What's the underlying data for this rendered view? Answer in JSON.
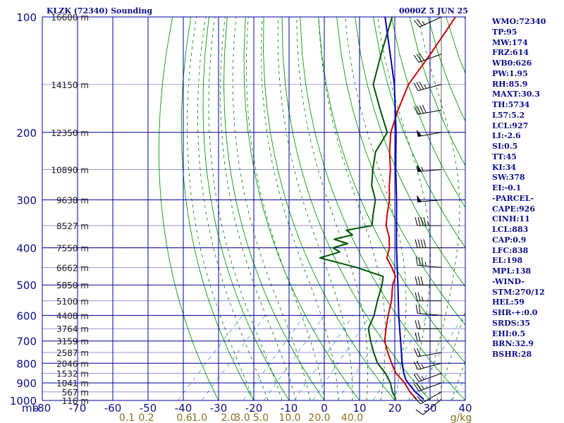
{
  "chart_data": {
    "type": "line",
    "title": "KLZK (72340) Sounding",
    "datetime": "0000Z  5 JUN 25",
    "pressure_unit_label": "mb",
    "xlim": [
      -80,
      40
    ],
    "plim": [
      100,
      1000
    ],
    "pressure_ticks": [
      100,
      200,
      300,
      400,
      500,
      600,
      700,
      800,
      900,
      1000
    ],
    "pressure_tick_labels": [
      "100",
      "200",
      "300",
      "400",
      "500",
      "600",
      "700",
      "800",
      "900",
      "1000"
    ],
    "temperature_ticks": [
      -80,
      -70,
      -60,
      -50,
      -40,
      -30,
      -20,
      -10,
      0,
      10,
      20,
      30,
      40
    ],
    "temperature_tick_labels": [
      "-80",
      "-70",
      "-60",
      "-50",
      "-40",
      "-30",
      "-20",
      "-10",
      "0",
      "10",
      "20",
      "30",
      "40"
    ],
    "mixing_ratio_ticks": [
      {
        "label": "0.1",
        "t": -56.0
      },
      {
        "label": "0.2",
        "t": -50.5
      },
      {
        "label": "0.6",
        "t": -39.7
      },
      {
        "label": "1.0",
        "t": -35.4
      },
      {
        "label": "2.0",
        "t": -27.1
      },
      {
        "label": "3.0",
        "t": -23.3
      },
      {
        "label": "5.0",
        "t": -18.0
      },
      {
        "label": "10.0",
        "t": -9.8
      },
      {
        "label": "20.0",
        "t": -1.4
      },
      {
        "label": "40.0",
        "t": 7.9
      }
    ],
    "mixing_ratio_unit": "g/kg",
    "height_labels": [
      {
        "p": 1000,
        "label": "116 m"
      },
      {
        "p": 950,
        "label": "567 m"
      },
      {
        "p": 900,
        "label": "1041 m"
      },
      {
        "p": 850,
        "label": "1532 m"
      },
      {
        "p": 800,
        "label": "2046 m"
      },
      {
        "p": 750,
        "label": "2587 m"
      },
      {
        "p": 700,
        "label": "3159 m"
      },
      {
        "p": 650,
        "label": "3764 m"
      },
      {
        "p": 600,
        "label": "4408 m"
      },
      {
        "p": 550,
        "label": "5100 m"
      },
      {
        "p": 500,
        "label": "5850 m"
      },
      {
        "p": 450,
        "label": "6662 m"
      },
      {
        "p": 400,
        "label": "7550 m"
      },
      {
        "p": 350,
        "label": "8527 m"
      },
      {
        "p": 300,
        "label": "9638 m"
      },
      {
        "p": 250,
        "label": "10890 m"
      },
      {
        "p": 200,
        "label": "12350 m"
      },
      {
        "p": 150,
        "label": "14150 m"
      },
      {
        "p": 100,
        "label": "16600 m"
      }
    ],
    "series": [
      {
        "name": "Temperature",
        "color": "#cc0000",
        "points": [
          [
            993,
            25.8
          ],
          [
            950,
            22.0
          ],
          [
            900,
            18.0
          ],
          [
            850,
            13.0
          ],
          [
            800,
            9.0
          ],
          [
            750,
            5.0
          ],
          [
            700,
            1.0
          ],
          [
            650,
            -2.0
          ],
          [
            600,
            -5.0
          ],
          [
            550,
            -8.0
          ],
          [
            500,
            -12.0
          ],
          [
            475,
            -13.5
          ],
          [
            450,
            -17.0
          ],
          [
            425,
            -21.0
          ],
          [
            400,
            -23.0
          ],
          [
            375,
            -26.0
          ],
          [
            350,
            -30.0
          ],
          [
            325,
            -33.0
          ],
          [
            300,
            -36.0
          ],
          [
            275,
            -40.0
          ],
          [
            250,
            -44.0
          ],
          [
            225,
            -49.0
          ],
          [
            200,
            -54.0
          ],
          [
            175,
            -58.0
          ],
          [
            150,
            -62.0
          ],
          [
            125,
            -64.0
          ],
          [
            100,
            -67.0
          ]
        ]
      },
      {
        "name": "Dewpoint",
        "color": "#005500",
        "points": [
          [
            993,
            20.0
          ],
          [
            950,
            17.0
          ],
          [
            900,
            14.0
          ],
          [
            850,
            10.0
          ],
          [
            800,
            5.0
          ],
          [
            750,
            1.0
          ],
          [
            700,
            -3.0
          ],
          [
            650,
            -7.0
          ],
          [
            600,
            -9.0
          ],
          [
            550,
            -12.0
          ],
          [
            500,
            -15.0
          ],
          [
            475,
            -17.0
          ],
          [
            450,
            -27.0
          ],
          [
            425,
            -40.0
          ],
          [
            410,
            -36.0
          ],
          [
            400,
            -39.0
          ],
          [
            390,
            -36.0
          ],
          [
            380,
            -41.0
          ],
          [
            370,
            -37.0
          ],
          [
            360,
            -40.0
          ],
          [
            350,
            -34.0
          ],
          [
            325,
            -37.0
          ],
          [
            300,
            -40.0
          ],
          [
            275,
            -45.0
          ],
          [
            250,
            -49.0
          ],
          [
            225,
            -53.0
          ],
          [
            200,
            -55.0
          ],
          [
            175,
            -63.0
          ],
          [
            150,
            -72.0
          ],
          [
            125,
            -78.0
          ],
          [
            100,
            -85.0
          ]
        ]
      },
      {
        "name": "Parcel",
        "color": "#0000b0",
        "points": [
          [
            993,
            27.8
          ],
          [
            950,
            23.5
          ],
          [
            900,
            19.0
          ],
          [
            883,
            17.5
          ],
          [
            850,
            15.2
          ],
          [
            800,
            12.0
          ],
          [
            700,
            5.5
          ],
          [
            600,
            -2.0
          ],
          [
            500,
            -10.5
          ],
          [
            400,
            -21.0
          ],
          [
            300,
            -34.0
          ],
          [
            250,
            -42.5
          ],
          [
            200,
            -52.5
          ],
          [
            150,
            -66.0
          ],
          [
            100,
            -87.0
          ]
        ]
      }
    ],
    "wind_barbs": [
      {
        "p": 993,
        "dir": 230,
        "spd": 10
      },
      {
        "p": 950,
        "dir": 240,
        "spd": 20
      },
      {
        "p": 900,
        "dir": 250,
        "spd": 25
      },
      {
        "p": 850,
        "dir": 250,
        "spd": 25
      },
      {
        "p": 800,
        "dir": 255,
        "spd": 25
      },
      {
        "p": 750,
        "dir": 260,
        "spd": 20
      },
      {
        "p": 700,
        "dir": 270,
        "spd": 20
      },
      {
        "p": 650,
        "dir": 270,
        "spd": 20
      },
      {
        "p": 600,
        "dir": 275,
        "spd": 20
      },
      {
        "p": 550,
        "dir": 270,
        "spd": 25
      },
      {
        "p": 500,
        "dir": 270,
        "spd": 30
      },
      {
        "p": 450,
        "dir": 275,
        "spd": 35
      },
      {
        "p": 400,
        "dir": 270,
        "spd": 40
      },
      {
        "p": 350,
        "dir": 270,
        "spd": 45
      },
      {
        "p": 300,
        "dir": 265,
        "spd": 50
      },
      {
        "p": 250,
        "dir": 265,
        "spd": 55
      },
      {
        "p": 200,
        "dir": 260,
        "spd": 50
      },
      {
        "p": 175,
        "dir": 260,
        "spd": 40
      },
      {
        "p": 150,
        "dir": 255,
        "spd": 35
      },
      {
        "p": 125,
        "dir": 250,
        "spd": 30
      },
      {
        "p": 100,
        "dir": 245,
        "spd": 25
      }
    ],
    "colors": {
      "grid": "#0000a0",
      "dry_adiabat": "#00a000",
      "moist_adiabat": "#007000",
      "mixing_ratio": "#6a9bd8",
      "mixing_label": "#8a6d1e",
      "label": "#0d0d8a",
      "height_label": "#202020",
      "barb": "#000000"
    }
  },
  "stats": [
    "WMO:72340",
    "TP:95",
    "MW:174",
    "FRZ:614",
    "WB0:626",
    "PW:1.95",
    "RH:85.9",
    "MAXT:30.3",
    "TH:5734",
    "L57:5.2",
    "LCL:927",
    "LI:-2.6",
    "SI:0.5",
    "TT:45",
    "KI:34",
    "SW:378",
    "EI:-0.1",
    "-PARCEL-",
    "CAPE:926",
    "CINH:11",
    "LCL:883",
    "CAP:0.9",
    "LFC:838",
    "EL:198",
    "MPL:138",
    "-WIND-",
    "STM:270/12",
    "HEL:59",
    "SHR-+:0.0",
    "SRDS:35",
    "EHI:0.5",
    "BRN:32.9",
    "BSHR:28"
  ]
}
